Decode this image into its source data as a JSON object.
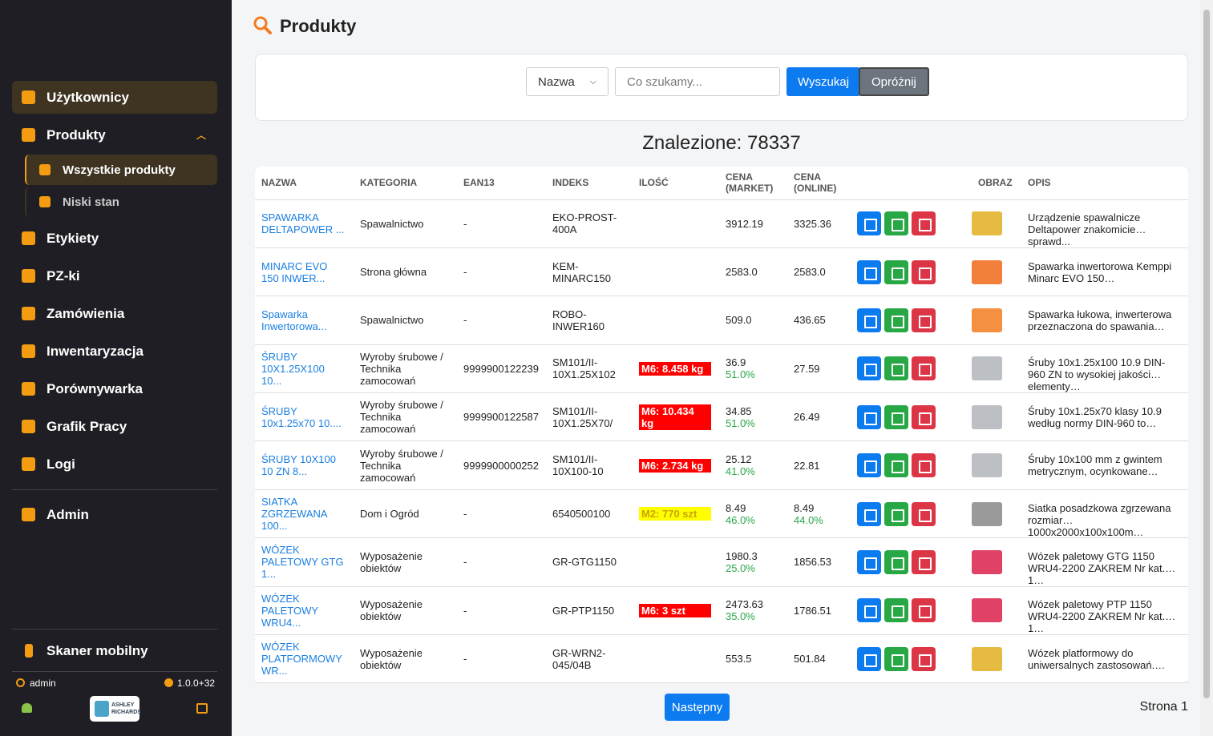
{
  "sidebar": {
    "menu": [
      "Użytkownicy",
      "Produkty",
      "Etykiety",
      "PZ-ki",
      "Zamówienia",
      "Inwentaryzacja",
      "Porównywarka",
      "Grafik Pracy",
      "Logi"
    ],
    "submenu": [
      "Wszystkie produkty",
      "Niski stan"
    ],
    "admin": "Admin",
    "mobile": "Skaner mobilny",
    "user": "admin",
    "version": "1.0.0+32",
    "logo": [
      "ASHLEY",
      "RICHARDS"
    ]
  },
  "header": {
    "title": "Produkty"
  },
  "search": {
    "field": "Nazwa",
    "placeholder": "Co szukamy...",
    "submit": "Wyszukaj",
    "clear": "Opróżnij"
  },
  "found": "Znalezione: 78337",
  "table": {
    "columns": [
      "NAZWA",
      "KATEGORIA",
      "EAN13",
      "INDEKS",
      "ILOŚĆ",
      "CENA (MARKET)",
      "CENA (ONLINE)",
      "OBRAZ",
      "OPIS"
    ],
    "rows": [
      {
        "name": "SPAWARKA DELTAPOWER ...",
        "category": "Spawalnictwo",
        "ean": "-",
        "index": "EKO-PROST-400A",
        "market": "3912.19",
        "online": "3325.36",
        "description": "Urządzenie spawalnicze Deltapower znakomicie sprawd..."
      },
      {
        "name": "MINARC EVO 150 INWER...",
        "category": "Strona główna",
        "ean": "-",
        "index": "KEM-MINARC150",
        "market": "2583.0",
        "online": "2583.0",
        "description": "Spawarka inwertorowa Kemppi Minarc EVO 150…"
      },
      {
        "name": "Spawarka Inwertorowa...",
        "category": "Spawalnictwo",
        "ean": "-",
        "index": "ROBO-INWER160",
        "market": "509.0",
        "online": "436.65",
        "description": "Spawarka łukowa, inwerterowa przeznaczona do spawania…"
      },
      {
        "name": "ŚRUBY 10X1.25X100 10...",
        "category": "Wyroby śrubowe / Technika zamocowań",
        "ean": "9999900122239",
        "index": "SM101/II-10X1.25X102",
        "qty": "M6: 8.458 kg",
        "qty_color": "#ff0000",
        "market": "36.9",
        "market_margin": "51.0%",
        "online": "27.59",
        "description": "Śruby 10x1.25x100 10.9 DIN-960 ZN to wysokiej jakości elementy…"
      },
      {
        "name": "ŚRUBY 10x1.25x70 10....",
        "category": "Wyroby śrubowe / Technika zamocowań",
        "ean": "9999900122587",
        "index": "SM101/II-10X1.25X70/",
        "qty": "M6: 10.434 kg",
        "qty_color": "#ff0000",
        "market": "34.85",
        "market_margin": "51.0%",
        "online": "26.49",
        "description": "Śruby 10x1.25x70 klasy 10.9 według normy DIN-960 to…"
      },
      {
        "name": "ŚRUBY 10X100 10 ZN 8...",
        "category": "Wyroby śrubowe / Technika zamocowań",
        "ean": "9999900000252",
        "index": "SM101/II-10X100-10",
        "qty": "M6: 2.734 kg",
        "qty_color": "#ff0000",
        "market": "25.12",
        "market_margin": "41.0%",
        "online": "22.81",
        "description": "Śruby 10x100 mm z gwintem metrycznym, ocynkowane…"
      },
      {
        "name": "SIATKA ZGRZEWANA 100...",
        "category": "Dom i Ogród",
        "ean": "-",
        "index": "6540500100",
        "qty": "M2: 770 szt",
        "qty_color": "#ffff00",
        "market": "8.49",
        "market_margin": "46.0%",
        "online": "8.49",
        "online_margin": "44.0%",
        "description": "Siatka posadzkowa zgrzewana rozmiar 1000x2000x100x100m…"
      },
      {
        "name": "WÓZEK PALETOWY GTG 1...",
        "category": "Wyposażenie obiektów",
        "ean": "-",
        "index": "GR-GTG1150",
        "market": "1980.3",
        "market_margin": "25.0%",
        "online": "1856.53",
        "description": "Wózek paletowy GTG 1150 WRU4-2200 ZAKREM Nr kat. 1…"
      },
      {
        "name": "WÓZEK PALETOWY WRU4...",
        "category": "Wyposażenie obiektów",
        "ean": "-",
        "index": "GR-PTP1150",
        "qty": "M6: 3 szt",
        "qty_color": "#ff0000",
        "market": "2473.63",
        "market_margin": "35.0%",
        "online": "1786.51",
        "description": "Wózek paletowy PTP 1150 WRU4-2200 ZAKREM Nr kat. 1…"
      },
      {
        "name": "WÓZEK PLATFORMOWY WR...",
        "category": "Wyposażenie obiektów",
        "ean": "-",
        "index": "GR-WRN2-045/04B",
        "market": "553.5",
        "online": "501.84",
        "description": "Wózek platformowy do uniwersalnych zastosowań.…"
      }
    ]
  },
  "pagination": {
    "next": "Następny",
    "page": "Strona 1"
  }
}
